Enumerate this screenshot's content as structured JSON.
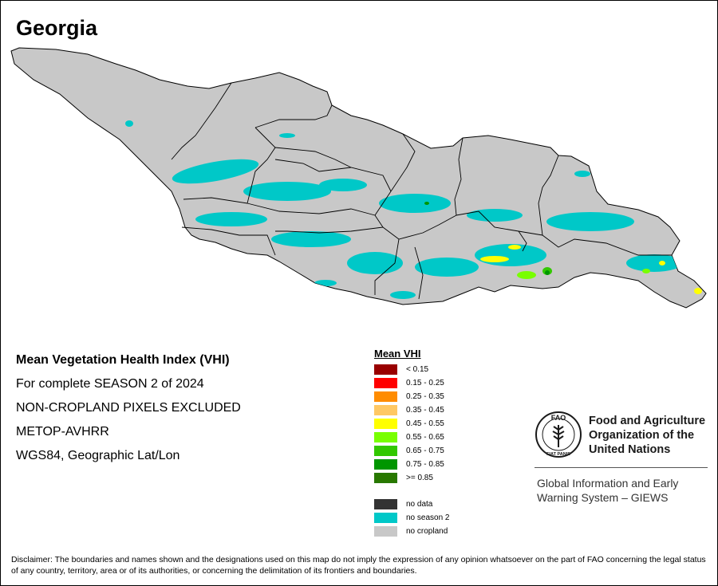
{
  "map": {
    "title": "Georgia",
    "colors": {
      "no_cropland": "#c8c8c8",
      "no_season": "#00c8c8",
      "boundary": "#000000"
    }
  },
  "info": {
    "lines": [
      "Mean Vegetation Health Index (VHI)",
      "For complete SEASON 2 of 2024",
      "NON-CROPLAND PIXELS EXCLUDED",
      "METOP-AVHRR",
      "WGS84, Geographic Lat/Lon"
    ]
  },
  "legend": {
    "title": "Mean VHI",
    "classes": [
      {
        "label": "< 0.15",
        "color": "#990000"
      },
      {
        "label": "0.15 - 0.25",
        "color": "#ff0000"
      },
      {
        "label": "0.25 - 0.35",
        "color": "#ff8c00"
      },
      {
        "label": "0.35 - 0.45",
        "color": "#ffc864"
      },
      {
        "label": "0.45 - 0.55",
        "color": "#ffff00"
      },
      {
        "label": "0.55 - 0.65",
        "color": "#78ff00"
      },
      {
        "label": "0.65 - 0.75",
        "color": "#32c800"
      },
      {
        "label": "0.75 - 0.85",
        "color": "#009600"
      },
      {
        "label": ">= 0.85",
        "color": "#287800"
      }
    ],
    "special": [
      {
        "label": "no data",
        "color": "#333333"
      },
      {
        "label": "no season 2",
        "color": "#00c8c8"
      },
      {
        "label": "no cropland",
        "color": "#c8c8c8"
      }
    ]
  },
  "fao": {
    "emblem_letters": "FAO",
    "emblem_motto": "FIAT PANIS",
    "org_name": "Food and Agriculture Organization of the United Nations",
    "giews": "Global Information and Early Warning System – GIEWS"
  },
  "disclaimer": "Disclaimer: The boundaries and names shown and the designations used on this map do not imply the expression of any opinion whatsoever on the part of FAO concerning the legal status of any country, territory, area or of its authorities, or concerning the delimitation of its frontiers and boundaries."
}
